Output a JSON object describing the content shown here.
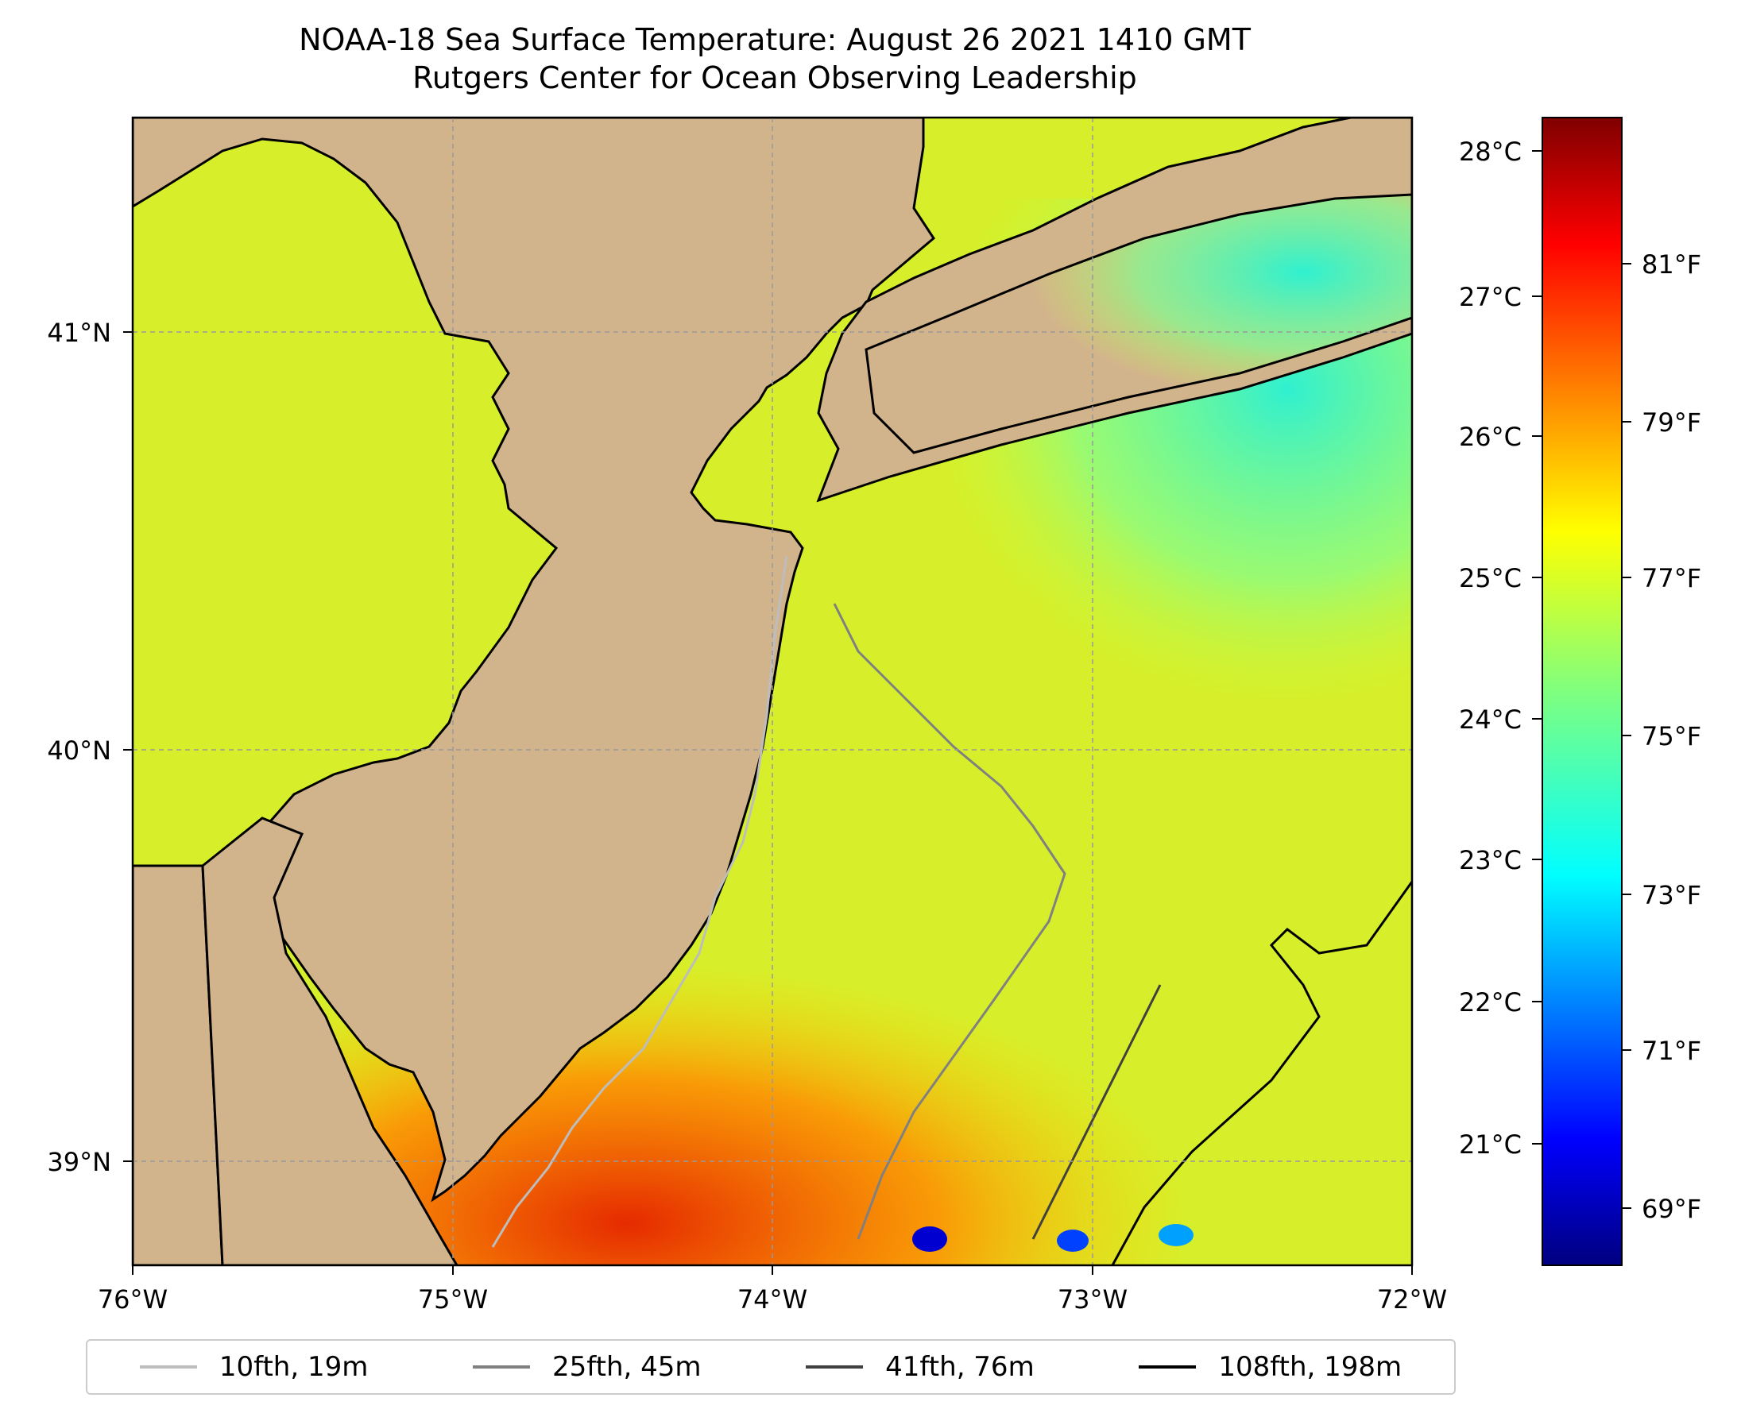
{
  "title": {
    "line1": "NOAA-18 Sea Surface Temperature: August 26 2021 1410 GMT",
    "line2": "Rutgers Center for Ocean Observing Leadership"
  },
  "map": {
    "lon_range": [
      -76,
      -72
    ],
    "lat_range": [
      38.72,
      41.5
    ],
    "x_ticks": [
      "76°W",
      "75°W",
      "74°W",
      "73°W",
      "72°W"
    ],
    "y_ticks": [
      "41°N",
      "40°N",
      "39°N"
    ],
    "land_color": "#d2b48c",
    "gridlines": true
  },
  "colorbar": {
    "celsius_labels": [
      "28°C",
      "27°C",
      "26°C",
      "25°C",
      "24°C",
      "23°C",
      "22°C",
      "21°C"
    ],
    "fahrenheit_labels": [
      "81°F",
      "79°F",
      "77°F",
      "75°F",
      "73°F",
      "71°F",
      "69°F"
    ],
    "colormap": "jet",
    "range_celsius": [
      20.2,
      28.3
    ]
  },
  "legend": [
    {
      "label": "10fth, 19m",
      "color": "#bdbdbd"
    },
    {
      "label": "25fth, 45m",
      "color": "#808080"
    },
    {
      "label": "41fth, 76m",
      "color": "#404040"
    },
    {
      "label": "108fth, 198m",
      "color": "#000000"
    }
  ]
}
